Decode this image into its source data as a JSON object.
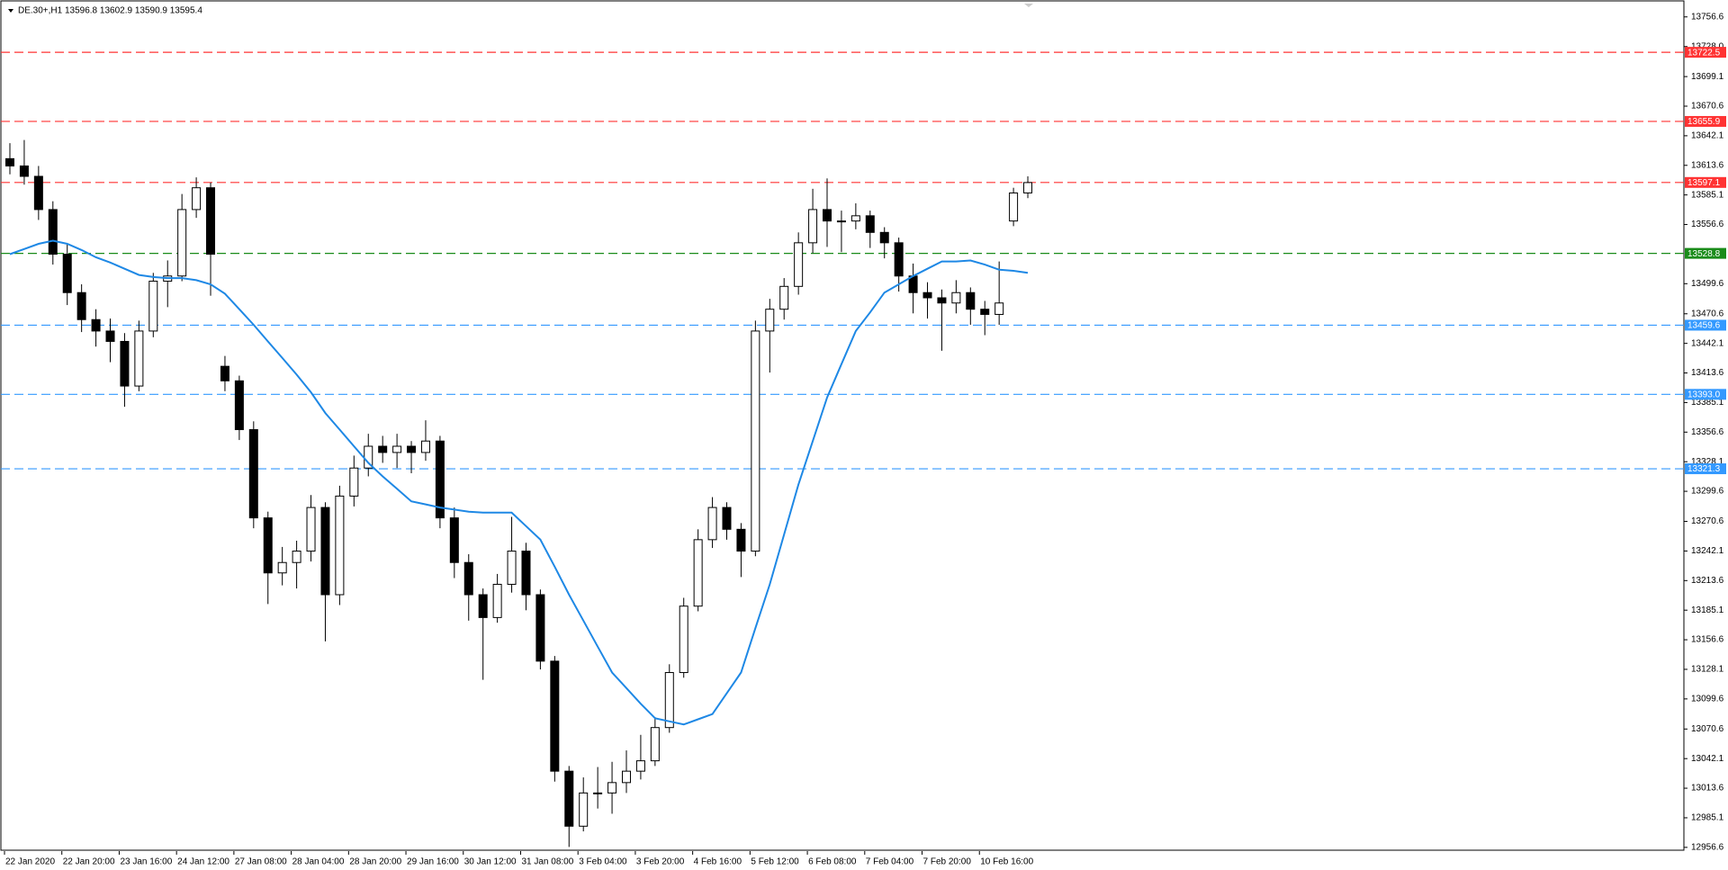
{
  "chart_data": {
    "type": "candlestick",
    "title": "DE.30+,H1  13596.8 13602.9 13590.9 13595.4",
    "categories": [
      "22 Jan 2020",
      null,
      null,
      null,
      "22 Jan 20:00",
      null,
      null,
      null,
      "23 Jan 16:00",
      null,
      null,
      null,
      "24 Jan 12:00",
      null,
      null,
      null,
      "27 Jan 08:00",
      null,
      null,
      null,
      "28 Jan 04:00",
      null,
      null,
      null,
      "28 Jan 20:00",
      null,
      null,
      null,
      "29 Jan 16:00",
      null,
      null,
      null,
      "30 Jan 12:00",
      null,
      null,
      null,
      "31 Jan 08:00",
      null,
      null,
      null,
      "3 Feb 04:00",
      null,
      null,
      null,
      "3 Feb 20:00",
      null,
      null,
      null,
      "4 Feb 16:00",
      null,
      null,
      null,
      "5 Feb 12:00",
      null,
      null,
      null,
      "6 Feb 08:00",
      null,
      null,
      null,
      "7 Feb 04:00",
      null,
      null,
      null,
      "7 Feb 20:00",
      null,
      null,
      null,
      "10 Feb 16:00",
      null,
      null,
      null
    ],
    "open": [
      13620,
      13613,
      13603,
      13571,
      13528,
      13491,
      13465,
      13454,
      13444,
      13401,
      13454,
      13502,
      13507,
      13571,
      13592,
      13420,
      13406,
      13359,
      13274,
      13221,
      13231,
      13242,
      13284,
      13200,
      13295,
      13322,
      13343,
      13337,
      13343,
      13337,
      13348,
      13274,
      13231,
      13200,
      13178,
      13210,
      13242,
      13200,
      13136,
      13030,
      12977,
      13009,
      13009,
      13019,
      13030,
      13040,
      13072,
      13125,
      13189,
      13253,
      13284,
      13263,
      13242,
      13454,
      13475,
      13497,
      13539,
      13571,
      13560,
      13560,
      13565,
      13549,
      13539,
      13507,
      13491,
      13486,
      13481,
      13491,
      13475,
      13470,
      13560,
      13587
    ],
    "high": [
      13635,
      13638,
      13613,
      13579,
      13538,
      13499,
      13475,
      13466,
      13452,
      13464,
      13510,
      13522,
      13586,
      13602,
      13597,
      13430,
      13411,
      13367,
      13280,
      13246,
      13252,
      13296,
      13289,
      13305,
      13334,
      13355,
      13353,
      13355,
      13348,
      13368,
      13353,
      13284,
      13239,
      13206,
      13220,
      13275,
      13250,
      13205,
      13141,
      13035,
      13024,
      13034,
      13039,
      13050,
      13065,
      13082,
      13133,
      13197,
      13263,
      13294,
      13289,
      13269,
      13464,
      13485,
      13505,
      13549,
      13591,
      13601,
      13570,
      13577,
      13570,
      13554,
      13544,
      13519,
      13501,
      13494,
      13503,
      13496,
      13483,
      13521,
      13592,
      13603
    ],
    "low": [
      13605,
      13595,
      13561,
      13518,
      13479,
      13453,
      13439,
      13424,
      13381,
      13396,
      13448,
      13477,
      13502,
      13563,
      13488,
      13396,
      13349,
      13264,
      13191,
      13209,
      13206,
      13232,
      13155,
      13190,
      13285,
      13314,
      13327,
      13322,
      13317,
      13329,
      13264,
      13216,
      13175,
      13118,
      13173,
      13202,
      13185,
      13128,
      13020,
      12957,
      12972,
      12994,
      12989,
      13009,
      13022,
      13035,
      13067,
      13120,
      13184,
      13245,
      13253,
      13217,
      13237,
      13414,
      13465,
      13489,
      13529,
      13535,
      13530,
      13552,
      13534,
      13524,
      13492,
      13471,
      13466,
      13435,
      13471,
      13460,
      13450,
      13460,
      13555,
      13582
    ],
    "close": [
      13613,
      13603,
      13571,
      13528,
      13491,
      13465,
      13454,
      13444,
      13401,
      13454,
      13502,
      13507,
      13571,
      13592,
      13528,
      13406,
      13359,
      13274,
      13221,
      13231,
      13242,
      13284,
      13200,
      13295,
      13322,
      13343,
      13337,
      13343,
      13337,
      13348,
      13274,
      13231,
      13200,
      13178,
      13210,
      13242,
      13200,
      13136,
      13030,
      12977,
      13009,
      13009,
      13019,
      13030,
      13040,
      13072,
      13125,
      13189,
      13253,
      13284,
      13263,
      13242,
      13454,
      13475,
      13497,
      13539,
      13571,
      13560,
      13560,
      13565,
      13549,
      13539,
      13507,
      13491,
      13486,
      13481,
      13491,
      13475,
      13470,
      13481,
      13587,
      13597
    ],
    "series": [
      {
        "color": "#1e88e5",
        "values": [
          13528,
          13533,
          13538,
          13541,
          13538,
          13532,
          13525,
          13520,
          13514,
          13508,
          13506,
          13505,
          13505,
          13503,
          13499,
          13490,
          13475,
          13460,
          13444,
          13428,
          13412,
          13395,
          13375,
          13359,
          13343,
          13327,
          13314,
          13302,
          13290,
          13287,
          13284,
          13282,
          13280,
          13279,
          13279,
          13279,
          13266,
          13253,
          13227,
          13200,
          13175,
          13150,
          13125,
          13110,
          13095,
          13081,
          13078,
          13075,
          13080,
          13085,
          13105,
          13125,
          13168,
          13210,
          13258,
          13306,
          13348,
          13390,
          13422,
          13454,
          13472,
          13491,
          13499,
          13507,
          13514,
          13521,
          13521,
          13522,
          13518,
          13513,
          13512,
          13510
        ]
      }
    ],
    "levels": [
      {
        "value": 13722.5,
        "color": "#ff3333"
      },
      {
        "value": 13655.9,
        "color": "#ff3333"
      },
      {
        "value": 13597.1,
        "color": "#ff3333"
      },
      {
        "value": 13528.8,
        "color": "#1a8c1a"
      },
      {
        "value": 13459.6,
        "color": "#3399ff"
      },
      {
        "value": 13393,
        "label": "13393.0",
        "color": "#3399ff"
      },
      {
        "value": 13321.3,
        "color": "#3399ff"
      }
    ],
    "ylim": [
      12953,
      13772
    ],
    "yticks": [
      13756.6,
      {
        "value": 13728,
        "label": "13728.0"
      },
      13699.1,
      13670.6,
      13642.1,
      13613.6,
      13585.1,
      13556.6,
      13499.6,
      13470.6,
      13442.1,
      13413.6,
      13385.1,
      13356.6,
      13328.1,
      13299.6,
      13270.6,
      13242.1,
      13213.6,
      13185.1,
      13156.6,
      13128.1,
      13099.6,
      13070.6,
      13042.1,
      13013.6,
      12985.1,
      12956.6
    ]
  }
}
